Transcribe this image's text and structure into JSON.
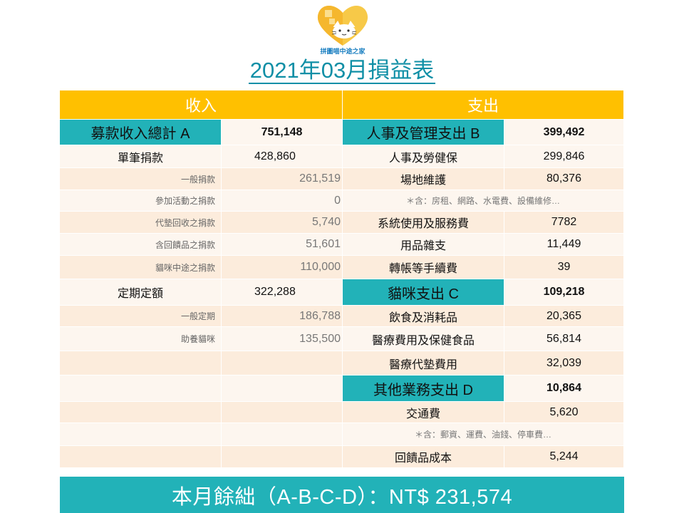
{
  "logo": {
    "text": "拼圖喵中途之家"
  },
  "title": "2021年03月損益表",
  "headers": {
    "income": "收入",
    "expense": "支出"
  },
  "income": {
    "total": {
      "label": "募款收入總計 A",
      "value": "751,148"
    },
    "single": {
      "label": "單筆捐款",
      "value": "428,860"
    },
    "single_items": [
      {
        "label": "一般捐款",
        "value": "261,519"
      },
      {
        "label": "參加活動之捐款",
        "value": "0"
      },
      {
        "label": "代墊回收之捐款",
        "value": "5,740"
      },
      {
        "label": "含回饋品之捐款",
        "value": "51,601"
      },
      {
        "label": "貓咪中途之捐款",
        "value": "110,000"
      }
    ],
    "regular": {
      "label": "定期定額",
      "value": "322,288"
    },
    "regular_items": [
      {
        "label": "一般定期",
        "value": "186,788"
      },
      {
        "label": "助養貓咪",
        "value": "135,500"
      }
    ]
  },
  "expense": {
    "admin": {
      "label": "人事及管理支出 B",
      "value": "399,492"
    },
    "admin_items": [
      {
        "label": "人事及勞健保",
        "value": "299,846"
      },
      {
        "label": "場地維護",
        "value": "80,376"
      },
      {
        "note": "＊含：房租、網路、水電費、設備維修…"
      },
      {
        "label": "系統使用及服務費",
        "value": "7782"
      },
      {
        "label": "用品雜支",
        "value": "11,449"
      },
      {
        "label": "轉帳等手續費",
        "value": "39"
      }
    ],
    "cat": {
      "label": "貓咪支出 C",
      "value": "109,218"
    },
    "cat_items": [
      {
        "label": "飲食及消耗品",
        "value": "20,365"
      },
      {
        "label": "醫療費用及保健食品",
        "value": "56,814"
      },
      {
        "label": "醫療代墊費用",
        "value": "32,039"
      }
    ],
    "other": {
      "label": "其他業務支出 D",
      "value": "10,864"
    },
    "other_items": [
      {
        "label": "交通費",
        "value": "5,620"
      },
      {
        "note": "＊含：郵資、運費、油錢、停車費…"
      },
      {
        "label": "回饋品成本",
        "value": "5,244"
      }
    ]
  },
  "footer": "本月餘絀（A-B-C-D）：NT$ 231,574"
}
